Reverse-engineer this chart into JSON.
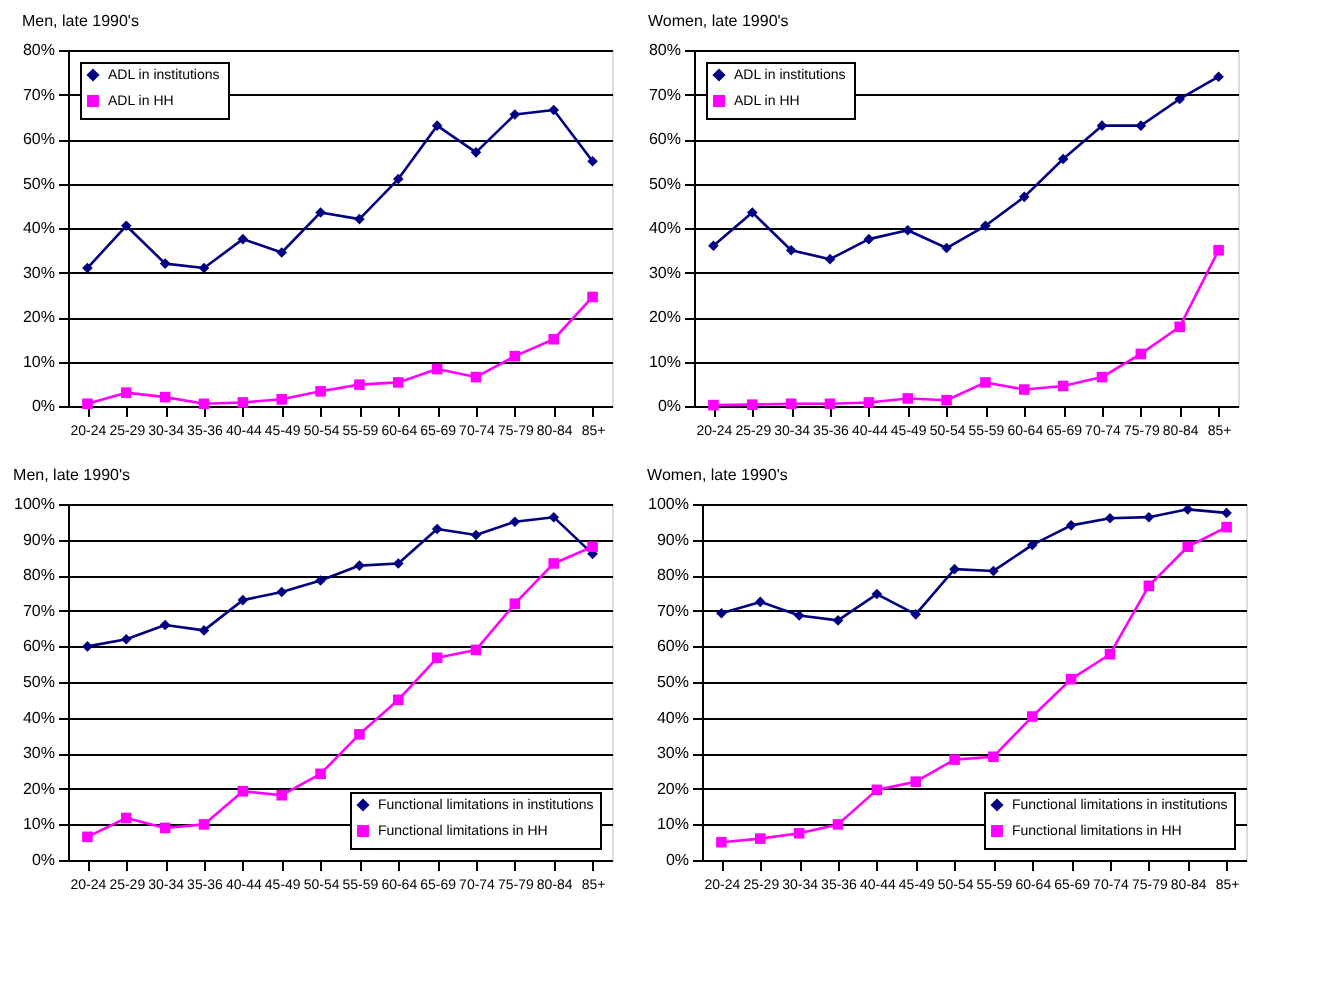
{
  "chart_data": [
    {
      "type": "line",
      "title": "Men, late 1990's",
      "categories": [
        "20-24",
        "25-29",
        "30-34",
        "35-36",
        "40-44",
        "45-49",
        "50-54",
        "55-59",
        "60-64",
        "65-69",
        "70-74",
        "75-79",
        "80-84",
        "85+"
      ],
      "ylim": [
        0,
        80
      ],
      "yticks": [
        {
          "value": 0,
          "label": "0%"
        },
        {
          "value": 10,
          "label": "10%"
        },
        {
          "value": 20,
          "label": "20%"
        },
        {
          "value": 30,
          "label": "30%"
        },
        {
          "value": 40,
          "label": "40%"
        },
        {
          "value": 50,
          "label": "50%"
        },
        {
          "value": 60,
          "label": "60%"
        },
        {
          "value": 70,
          "label": "70%"
        },
        {
          "value": 80,
          "label": "80%"
        }
      ],
      "grid": "y",
      "legend": "top left",
      "series": [
        {
          "name": "ADL in institutions",
          "color": "#000080",
          "marker": "diamond",
          "values": [
            31,
            40.5,
            32,
            31,
            37.5,
            34.5,
            43.5,
            42,
            51,
            63,
            57,
            65.5,
            66.5,
            55
          ]
        },
        {
          "name": "ADL in HH",
          "color": "#ff00ff",
          "marker": "square",
          "values": [
            0.5,
            3,
            2,
            0.5,
            0.8,
            1.5,
            3.3,
            4.8,
            5.3,
            8.3,
            6.5,
            11.2,
            15,
            24.5
          ]
        }
      ]
    },
    {
      "type": "line",
      "title": "Women, late 1990's",
      "categories": [
        "20-24",
        "25-29",
        "30-34",
        "35-36",
        "40-44",
        "45-49",
        "50-54",
        "55-59",
        "60-64",
        "65-69",
        "70-74",
        "75-79",
        "80-84",
        "85+"
      ],
      "ylim": [
        0,
        80
      ],
      "yticks": [
        {
          "value": 0,
          "label": "0%"
        },
        {
          "value": 10,
          "label": "10%"
        },
        {
          "value": 20,
          "label": "20%"
        },
        {
          "value": 30,
          "label": "30%"
        },
        {
          "value": 40,
          "label": "40%"
        },
        {
          "value": 50,
          "label": "50%"
        },
        {
          "value": 60,
          "label": "60%"
        },
        {
          "value": 70,
          "label": "70%"
        },
        {
          "value": 80,
          "label": "80%"
        }
      ],
      "grid": "y",
      "legend": "top left",
      "series": [
        {
          "name": "ADL in institutions",
          "color": "#000080",
          "marker": "diamond",
          "values": [
            36,
            43.5,
            35,
            33,
            37.5,
            39.5,
            35.5,
            40.5,
            47,
            55.5,
            63,
            63,
            69,
            74
          ]
        },
        {
          "name": "ADL in HH",
          "color": "#ff00ff",
          "marker": "square",
          "values": [
            0.2,
            0.3,
            0.5,
            0.5,
            0.8,
            1.7,
            1.3,
            5.3,
            3.7,
            4.5,
            6.5,
            11.7,
            17.8,
            35
          ]
        }
      ]
    },
    {
      "type": "line",
      "title": "Men, late 1990's",
      "categories": [
        "20-24",
        "25-29",
        "30-34",
        "35-36",
        "40-44",
        "45-49",
        "50-54",
        "55-59",
        "60-64",
        "65-69",
        "70-74",
        "75-79",
        "80-84",
        "85+"
      ],
      "ylim": [
        0,
        100
      ],
      "yticks": [
        {
          "value": 0,
          "label": "0%"
        },
        {
          "value": 10,
          "label": "10%"
        },
        {
          "value": 20,
          "label": "20%"
        },
        {
          "value": 30,
          "label": "30%"
        },
        {
          "value": 40,
          "label": "40%"
        },
        {
          "value": 50,
          "label": "50%"
        },
        {
          "value": 60,
          "label": "60%"
        },
        {
          "value": 70,
          "label": "70%"
        },
        {
          "value": 80,
          "label": "80%"
        },
        {
          "value": 90,
          "label": "90%"
        },
        {
          "value": 100,
          "label": "100%"
        }
      ],
      "grid": "y",
      "legend": "bottom right",
      "series": [
        {
          "name": "Functional limitations in institutions",
          "color": "#000080",
          "marker": "diamond",
          "values": [
            60,
            62,
            66,
            64.5,
            73,
            75.3,
            78.5,
            82.7,
            83.3,
            93,
            91.3,
            95,
            96.3,
            86
          ]
        },
        {
          "name": "Functional limitations in HH",
          "color": "#ff00ff",
          "marker": "square",
          "values": [
            6.5,
            11.8,
            9,
            10,
            19.3,
            18.2,
            24.2,
            35.3,
            45,
            56.8,
            59,
            72,
            83.3,
            88
          ]
        }
      ]
    },
    {
      "type": "line",
      "title": "Women, late 1990's",
      "categories": [
        "20-24",
        "25-29",
        "30-34",
        "35-36",
        "40-44",
        "45-49",
        "50-54",
        "55-59",
        "60-64",
        "65-69",
        "70-74",
        "75-79",
        "80-84",
        "85+"
      ],
      "ylim": [
        0,
        100
      ],
      "yticks": [
        {
          "value": 0,
          "label": "0%"
        },
        {
          "value": 10,
          "label": "10%"
        },
        {
          "value": 20,
          "label": "20%"
        },
        {
          "value": 30,
          "label": "30%"
        },
        {
          "value": 40,
          "label": "40%"
        },
        {
          "value": 50,
          "label": "50%"
        },
        {
          "value": 60,
          "label": "60%"
        },
        {
          "value": 70,
          "label": "70%"
        },
        {
          "value": 80,
          "label": "80%"
        },
        {
          "value": 90,
          "label": "90%"
        },
        {
          "value": 100,
          "label": "100%"
        }
      ],
      "grid": "y",
      "legend": "bottom right",
      "series": [
        {
          "name": "Functional limitations in institutions",
          "color": "#000080",
          "marker": "diamond",
          "values": [
            69.3,
            72.5,
            68.7,
            67.3,
            74.7,
            69,
            81.7,
            81.2,
            88.5,
            94,
            96,
            96.3,
            98.5,
            97.5
          ]
        },
        {
          "name": "Functional limitations in HH",
          "color": "#ff00ff",
          "marker": "square",
          "values": [
            5,
            6,
            7.5,
            10,
            19.7,
            22,
            28.2,
            29,
            40.3,
            50.8,
            57.8,
            77,
            88,
            93.5
          ]
        }
      ]
    }
  ]
}
